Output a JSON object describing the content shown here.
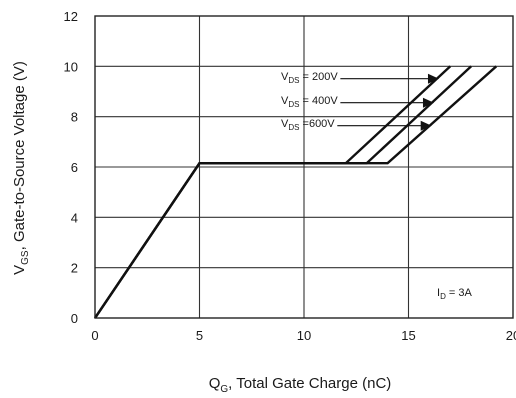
{
  "chart_data": {
    "type": "line",
    "xlabel": {
      "main": "Q",
      "sub": "G",
      "rest": ", Total Gate Charge (nC)"
    },
    "ylabel": {
      "main": "V",
      "sub": "GS",
      "rest": ", Gate-to-Source Voltage (V)"
    },
    "xlim": [
      0,
      20
    ],
    "ylim": [
      0,
      12
    ],
    "x_ticks": [
      0,
      5,
      10,
      15,
      20
    ],
    "y_ticks": [
      0,
      2,
      4,
      6,
      8,
      10,
      12
    ],
    "grid": true,
    "series": [
      {
        "name_main": "V",
        "name_sub": "DS",
        "name_rest": " = 200V",
        "points": [
          [
            0,
            0
          ],
          [
            5,
            6.15
          ],
          [
            12.0,
            6.15
          ],
          [
            17.0,
            10.0
          ]
        ]
      },
      {
        "name_main": "V",
        "name_sub": "DS",
        "name_rest": " = 400V",
        "points": [
          [
            0,
            0
          ],
          [
            5,
            6.15
          ],
          [
            13.0,
            6.15
          ],
          [
            18.0,
            10.0
          ]
        ]
      },
      {
        "name_main": "V",
        "name_sub": "DS",
        "name_rest": " =600V",
        "points": [
          [
            0,
            0
          ],
          [
            5,
            6.15
          ],
          [
            14.0,
            6.15
          ],
          [
            19.2,
            10.0
          ]
        ]
      }
    ],
    "annotation": {
      "main": "I",
      "sub": "D",
      "rest": " = 3A"
    }
  }
}
